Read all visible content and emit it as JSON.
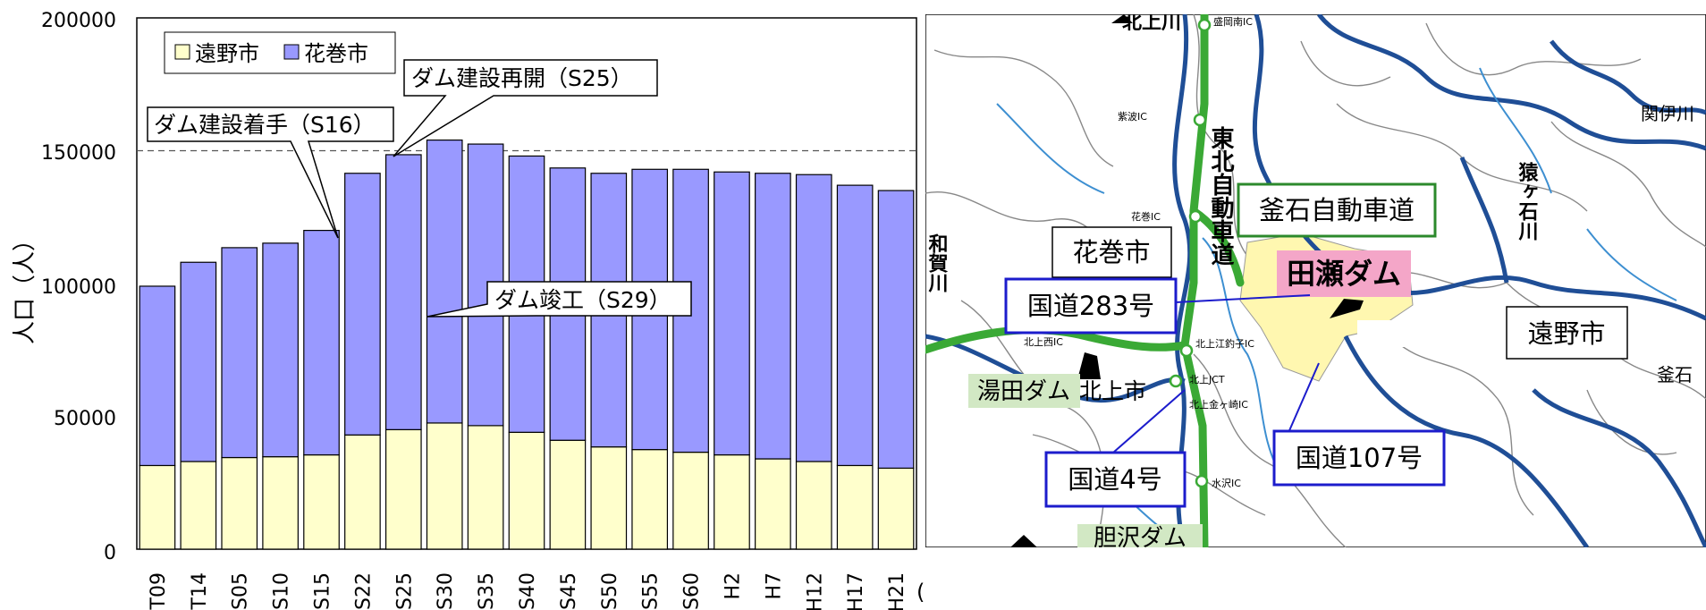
{
  "chart_data": {
    "type": "bar",
    "stacked": true,
    "categories": [
      "T09",
      "T14",
      "S05",
      "S10",
      "S15",
      "S22",
      "S25",
      "S30",
      "S35",
      "S40",
      "S45",
      "S50",
      "S55",
      "S60",
      "H2",
      "H7",
      "H12",
      "H17",
      "H21"
    ],
    "series": [
      {
        "name": "遠野市",
        "color": "#ffffcc",
        "values": [
          31500,
          33000,
          34500,
          34800,
          35500,
          43000,
          45000,
          47500,
          46500,
          44000,
          41000,
          38500,
          37500,
          36500,
          35500,
          34000,
          33000,
          31500,
          30500
        ]
      },
      {
        "name": "花巻市",
        "color": "#9999ff",
        "values": [
          67500,
          75000,
          79000,
          80400,
          84500,
          98500,
          103500,
          106500,
          106000,
          104000,
          102500,
          103000,
          105500,
          106500,
          106500,
          107500,
          108000,
          105500,
          104500
        ]
      }
    ],
    "ylim": [
      0,
      200000
    ],
    "yticks": [
      "0",
      "50000",
      "100000",
      "150000",
      "200000"
    ],
    "ylabel": "人口（人）",
    "xunit": "(年)",
    "reference_line": {
      "value": 150000,
      "style": "dashed"
    },
    "legend": {
      "placement": "top-left"
    },
    "annotations": [
      {
        "text": "ダム建設着手（S16）",
        "target": "S15"
      },
      {
        "text": "ダム建設再開（S25）",
        "target": "S25"
      },
      {
        "text": "ダム竣工（S29）",
        "target": "S30"
      }
    ]
  },
  "map": {
    "labels": {
      "hanamaki": "花巻市",
      "kamaishi_expressway": "釜石自動車道",
      "tase_dam": "田瀬ダム",
      "route283": "国道283号",
      "tono": "遠野市",
      "yuda_dam": "湯田ダム",
      "kitakami": "北上市",
      "route107": "国道107号",
      "route4": "国道4号",
      "tohoku_expressway": "東北自動車道",
      "sarugaishi_river": "猿ヶ石川",
      "kitakami_river": "北上川",
      "waga_river": "和賀川",
      "ishidoriya_dam": "胆沢ダム",
      "kamaishi": "釜石",
      "seki_iga": "関伊川",
      "morioka_ic": "盛岡南IC",
      "shiwa_ic": "紫波IC",
      "hanamaki_ic": "花巻IC",
      "kitakami_west_ic": "北上西IC",
      "kitakami_ezuriko_ic": "北上江釣子IC",
      "kitakami_jct": "北上JCT",
      "kitakami_kanegasaki_ic": "北上金ヶ崎IC",
      "mizusawa_ic": "水沢IC"
    },
    "colors": {
      "river": "#1f4e96",
      "expressway": "#3aa935",
      "highlight": "#fff7b0",
      "dam_label_bg": "#f4a6c8",
      "route_label_border": "#1c1ccc",
      "expressway_label_border": "#2c8a2c"
    }
  }
}
